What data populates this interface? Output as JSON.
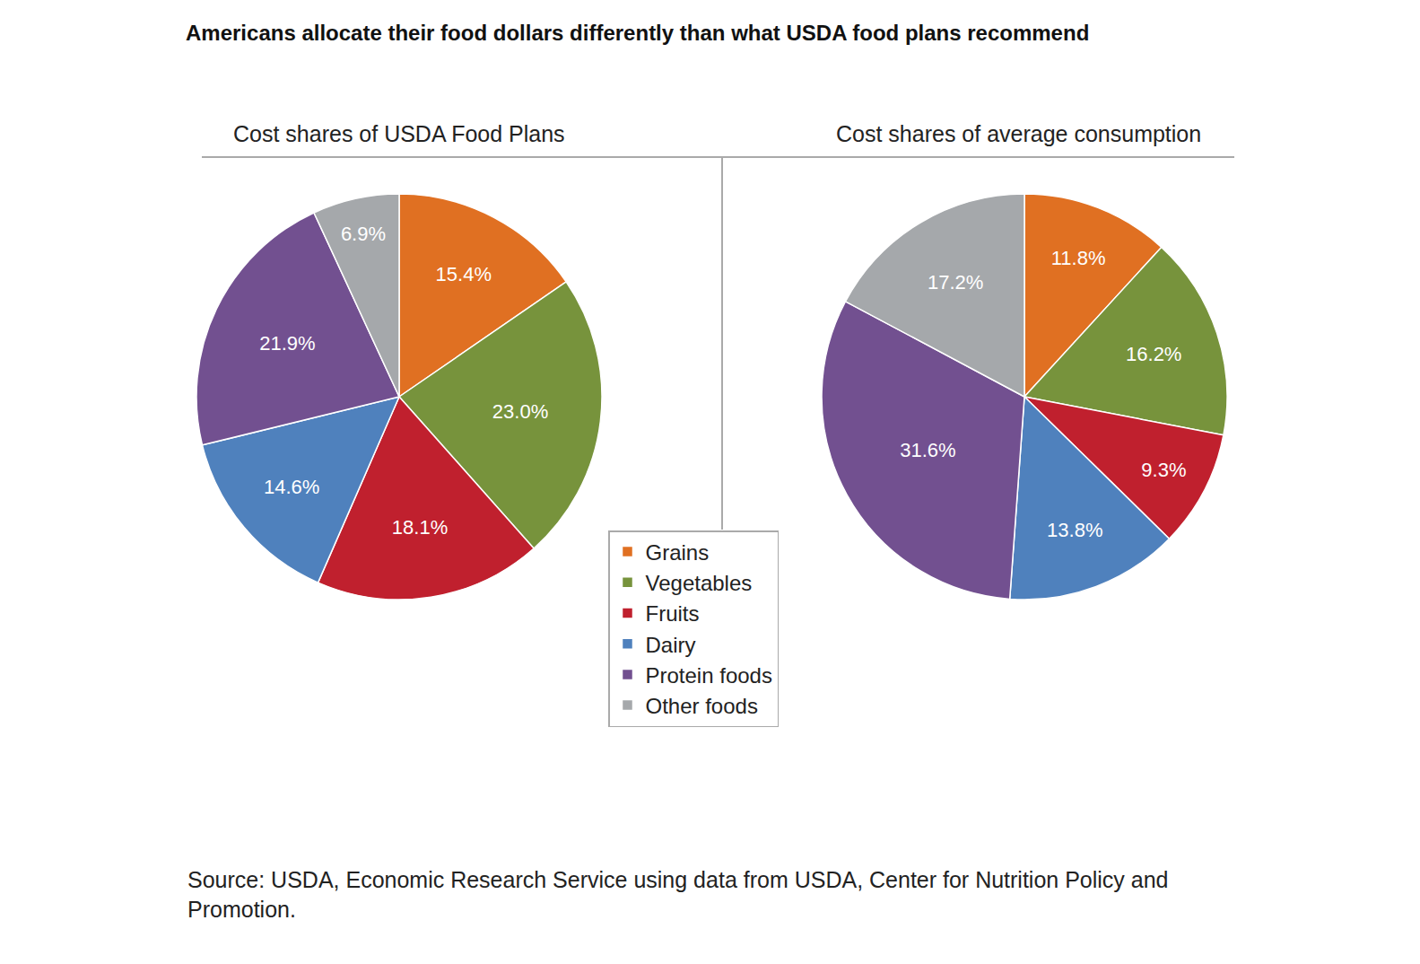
{
  "title": "Americans allocate their food dollars differently than what USDA food plans recommend",
  "note": "Source: USDA, Economic Research Service using data from USDA, Center for Nutrition Policy and Promotion.",
  "chart_data": [
    {
      "type": "pie",
      "title": "Cost shares of USDA Food Plans",
      "categories": [
        "Grains",
        "Vegetables",
        "Fruits",
        "Dairy",
        "Protein foods",
        "Other foods"
      ],
      "values": [
        15.4,
        23.0,
        18.1,
        14.6,
        21.9,
        6.9
      ],
      "value_labels": [
        "15.4%",
        "23.0%",
        "18.1%",
        "14.6%",
        "21.9%",
        "6.9%"
      ],
      "colors": [
        "#e07022",
        "#77933c",
        "#c0202e",
        "#4f81bd",
        "#725090",
        "#a5a8ab"
      ],
      "data_labels": true,
      "legend": "bottom"
    },
    {
      "type": "pie",
      "title": "Cost shares of average consumption",
      "categories": [
        "Grains",
        "Vegetables",
        "Fruits",
        "Dairy",
        "Protein foods",
        "Other foods"
      ],
      "values": [
        11.8,
        16.2,
        9.3,
        13.8,
        31.6,
        17.2
      ],
      "value_labels": [
        "11.8%",
        "16.2%",
        "9.3%",
        "13.8%",
        "31.6%",
        "17.2%"
      ],
      "colors": [
        "#e07022",
        "#77933c",
        "#c0202e",
        "#4f81bd",
        "#725090",
        "#a5a8ab"
      ],
      "data_labels": true,
      "legend": "bottom"
    }
  ]
}
